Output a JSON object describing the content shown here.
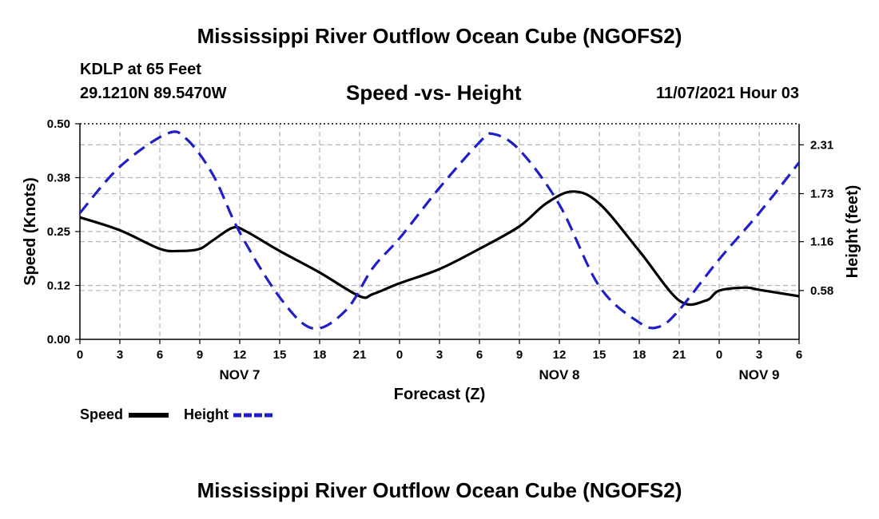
{
  "header": {
    "title": "Mississippi River Outflow Ocean Cube (NGOFS2)",
    "station": "KDLP at 65 Feet",
    "coords": "29.1210N  89.5470W",
    "subtitle": "Speed -vs- Height",
    "datetime": "11/07/2021 Hour 03",
    "footer_title": "Mississippi River Outflow Ocean Cube (NGOFS2)"
  },
  "chart_data": {
    "type": "line",
    "title": "Speed -vs- Height",
    "xlabel": "Forecast (Z)",
    "ylabel": "Speed (Knots)",
    "y2label": "Height (feet)",
    "xlim": [
      0,
      54
    ],
    "ylim": [
      0,
      0.5
    ],
    "y2lim": [
      0,
      2.56
    ],
    "xticks": [
      0,
      3,
      6,
      9,
      12,
      15,
      18,
      21,
      24,
      27,
      30,
      33,
      36,
      39,
      42,
      45,
      48,
      51,
      54
    ],
    "xtick_labels": [
      "0",
      "3",
      "6",
      "9",
      "12",
      "15",
      "18",
      "21",
      "0",
      "3",
      "6",
      "9",
      "12",
      "15",
      "18",
      "21",
      "0",
      "3",
      "6"
    ],
    "yticks": [
      0,
      0.125,
      0.25,
      0.375,
      0.5
    ],
    "ytick_labels": [
      "0.00",
      "0.12",
      "0.25",
      "0.38",
      "0.50"
    ],
    "y2ticks": [
      0.58,
      1.16,
      1.73,
      2.31
    ],
    "y2tick_labels": [
      "0.58",
      "1.16",
      "1.73",
      "2.31"
    ],
    "day_labels": [
      {
        "label": "NOV 7",
        "x": 12
      },
      {
        "label": "NOV 8",
        "x": 36
      },
      {
        "label": "NOV 9",
        "x": 51
      }
    ],
    "grid": true,
    "series": [
      {
        "name": "Speed",
        "axis": "left",
        "color": "#000000",
        "style": "solid",
        "x": [
          0,
          3,
          6,
          7.5,
          9,
          10,
          11.5,
          12.5,
          15,
          18,
          21,
          22,
          24,
          27,
          30,
          33,
          35,
          37,
          39,
          42,
          45,
          47,
          48,
          50,
          51,
          54
        ],
        "values": [
          0.283,
          0.253,
          0.21,
          0.205,
          0.21,
          0.23,
          0.259,
          0.25,
          0.205,
          0.155,
          0.1,
          0.105,
          0.13,
          0.163,
          0.21,
          0.262,
          0.315,
          0.343,
          0.315,
          0.205,
          0.09,
          0.09,
          0.113,
          0.12,
          0.115,
          0.1
        ]
      },
      {
        "name": "Height",
        "axis": "right",
        "color": "#1f1fc8",
        "style": "dashed",
        "x": [
          0,
          3,
          6.5,
          8,
          10,
          12,
          15,
          17.5,
          20,
          22,
          24,
          27,
          30,
          31,
          33,
          36,
          39,
          42,
          43.5,
          45,
          48,
          51,
          54
        ],
        "values": [
          1.5,
          2.05,
          2.44,
          2.38,
          1.95,
          1.27,
          0.5,
          0.13,
          0.35,
          0.85,
          1.2,
          1.8,
          2.34,
          2.44,
          2.25,
          1.6,
          0.63,
          0.2,
          0.15,
          0.35,
          0.95,
          1.5,
          2.1
        ]
      }
    ],
    "legend": {
      "position": "bottom-left",
      "entries": [
        "Speed",
        "Height"
      ]
    }
  }
}
